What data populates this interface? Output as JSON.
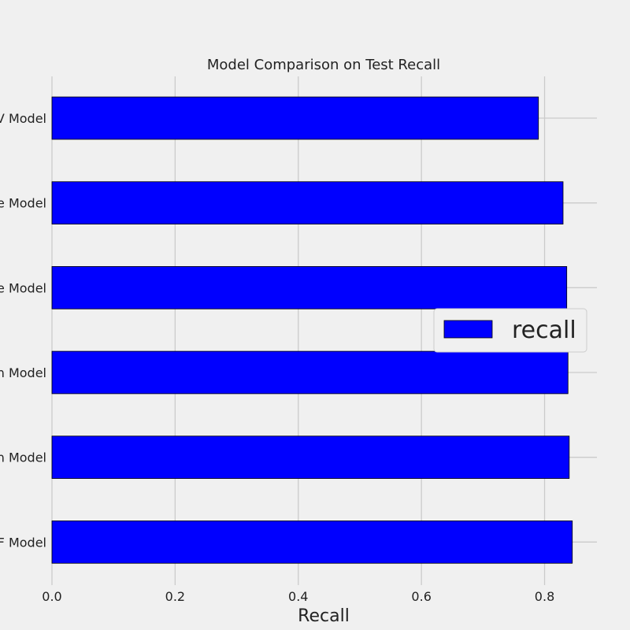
{
  "chart_data": {
    "type": "bar",
    "orientation": "horizontal",
    "title": "Model Comparison on Test Recall",
    "xlabel": "Recall",
    "ylabel": "",
    "xlim": [
      0,
      0.885
    ],
    "x_ticks": [
      0.0,
      0.2,
      0.4,
      0.6,
      0.8
    ],
    "x_tick_labels": [
      "0.0",
      "0.2",
      "0.4",
      "0.6",
      "0.8"
    ],
    "categories": [
      "V Model",
      "e Model",
      "e Model",
      "n Model",
      "n Model",
      "F Model"
    ],
    "series": [
      {
        "name": "recall",
        "values": [
          0.79,
          0.83,
          0.836,
          0.838,
          0.84,
          0.845
        ]
      }
    ],
    "grid": true,
    "legend_position": "center-right",
    "colors": {
      "bar": "#0000ff",
      "background": "#f0f0f0",
      "grid": "#cbcbcb"
    }
  }
}
